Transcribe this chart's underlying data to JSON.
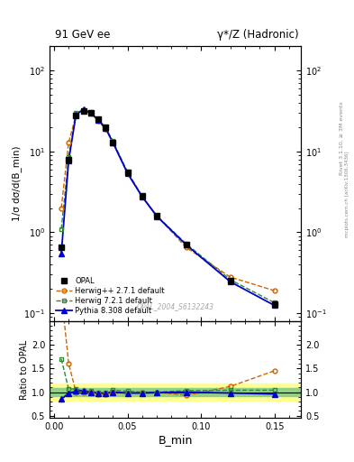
{
  "title_left": "91 GeV ee",
  "title_right": "γ*/Z (Hadronic)",
  "ylabel_main": "1/σ dσ/d(B_min)",
  "ylabel_ratio": "Ratio to OPAL",
  "xlabel": "B_min",
  "watermark": "OPAL_2004_S6132243",
  "right_label": "Rivet 3.1.10, ≥ 3M events",
  "right_label2": "mcplots.cern.ch [arXiv:1306.3436]",
  "xdata": [
    0.005,
    0.01,
    0.015,
    0.02,
    0.025,
    0.03,
    0.035,
    0.04,
    0.05,
    0.06,
    0.07,
    0.09,
    0.12,
    0.15
  ],
  "opal_y": [
    0.65,
    8.0,
    28.0,
    32.0,
    30.0,
    25.0,
    20.0,
    13.0,
    5.5,
    2.8,
    1.6,
    0.7,
    0.25,
    0.13
  ],
  "opal_yerr": [
    0.05,
    0.5,
    1.0,
    1.0,
    1.0,
    0.8,
    0.6,
    0.4,
    0.2,
    0.1,
    0.07,
    0.04,
    0.015,
    0.01
  ],
  "herwig_pp_y": [
    2.0,
    13.0,
    28.0,
    32.0,
    30.0,
    24.0,
    19.0,
    13.0,
    5.4,
    2.8,
    1.6,
    0.65,
    0.28,
    0.19
  ],
  "herwig7_y": [
    1.1,
    8.5,
    30.0,
    32.5,
    30.5,
    25.0,
    20.0,
    13.5,
    5.6,
    2.8,
    1.6,
    0.72,
    0.26,
    0.135
  ],
  "pythia_y": [
    0.55,
    7.8,
    28.5,
    33.0,
    30.0,
    24.5,
    19.5,
    13.0,
    5.4,
    2.75,
    1.58,
    0.7,
    0.245,
    0.125
  ],
  "ratio_herwig_pp": [
    3.1,
    1.6,
    1.0,
    1.0,
    1.0,
    0.96,
    0.95,
    1.0,
    0.98,
    1.0,
    1.0,
    0.93,
    1.12,
    1.45
  ],
  "ratio_herwig7": [
    1.7,
    1.06,
    1.07,
    1.02,
    1.02,
    1.0,
    1.0,
    1.04,
    1.02,
    1.0,
    1.0,
    1.03,
    1.04,
    1.04
  ],
  "ratio_pythia": [
    0.85,
    0.975,
    1.02,
    1.03,
    1.0,
    0.98,
    0.975,
    1.0,
    0.98,
    0.98,
    0.99,
    1.0,
    0.98,
    0.96
  ],
  "opal_color": "#000000",
  "herwig_pp_color": "#cc6600",
  "herwig7_color": "#338833",
  "pythia_color": "#0000cc",
  "band_yellow": [
    0.82,
    1.18
  ],
  "band_green": [
    0.92,
    1.08
  ],
  "ylim_main": [
    0.08,
    200
  ],
  "ylim_ratio": [
    0.45,
    2.5
  ],
  "xlim": [
    -0.003,
    0.168
  ]
}
